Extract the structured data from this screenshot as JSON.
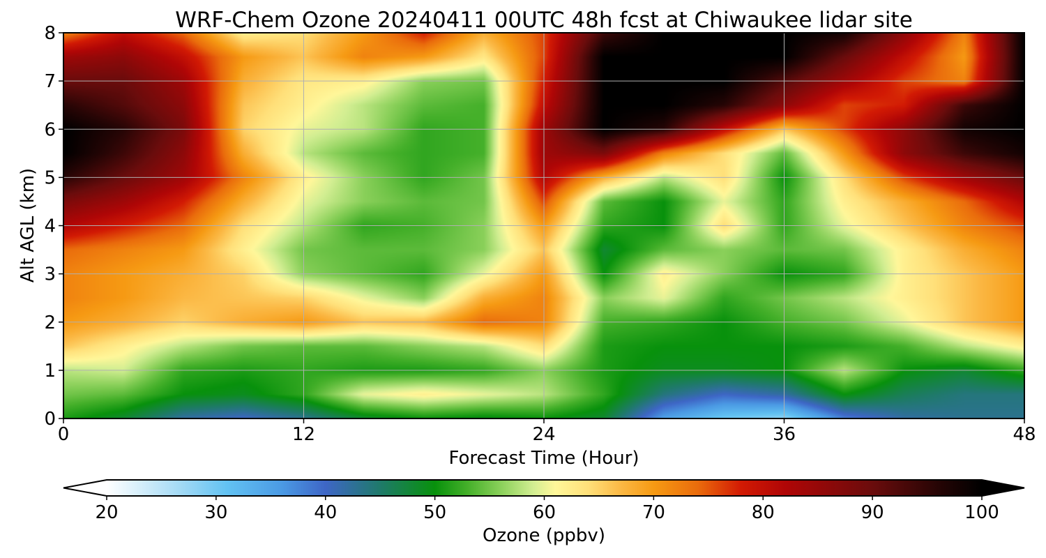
{
  "chart_data": {
    "type": "heatmap",
    "title": "WRF-Chem Ozone  20240411 00UTC 48h fcst at Chiwaukee lidar site",
    "xlabel": "Forecast Time (Hour)",
    "ylabel": "Alt AGL (km)",
    "xlim": [
      0,
      48
    ],
    "ylim": [
      0,
      8
    ],
    "x_ticks": [
      "0",
      "12",
      "24",
      "36",
      "48"
    ],
    "y_ticks": [
      "0",
      "1",
      "2",
      "3",
      "4",
      "5",
      "6",
      "7",
      "8"
    ],
    "grid": true,
    "x": [
      0,
      3,
      6,
      9,
      12,
      15,
      18,
      21,
      24,
      27,
      30,
      33,
      36,
      39,
      42,
      45,
      48
    ],
    "y": [
      0,
      0.5,
      1,
      1.5,
      2,
      2.5,
      3,
      3.5,
      4,
      4.5,
      5,
      5.5,
      6,
      6.5,
      7,
      7.5,
      8
    ],
    "z_ppbv": [
      [
        51,
        48,
        42,
        40,
        43,
        48,
        50,
        49,
        50,
        48,
        35,
        30,
        28,
        38,
        42,
        43,
        43
      ],
      [
        55,
        54,
        50,
        49,
        52,
        60,
        62,
        60,
        58,
        52,
        44,
        40,
        42,
        50,
        46,
        44,
        44
      ],
      [
        58,
        59,
        52,
        51,
        52,
        51,
        51,
        52,
        56,
        51,
        49,
        49,
        50,
        58,
        50,
        48,
        52
      ],
      [
        66,
        62,
        58,
        55,
        54,
        54,
        56,
        58,
        64,
        51,
        50,
        50,
        50,
        51,
        53,
        58,
        62
      ],
      [
        70,
        68,
        65,
        68,
        70,
        66,
        67,
        74,
        72,
        53,
        52,
        50,
        53,
        55,
        60,
        66,
        70
      ],
      [
        72,
        70,
        67,
        66,
        65,
        60,
        56,
        68,
        72,
        56,
        60,
        52,
        55,
        58,
        62,
        66,
        70
      ],
      [
        72,
        70,
        68,
        65,
        56,
        54,
        52,
        60,
        70,
        50,
        62,
        56,
        50,
        52,
        62,
        66,
        70
      ],
      [
        74,
        72,
        70,
        62,
        55,
        54,
        54,
        56,
        66,
        48,
        54,
        56,
        54,
        55,
        62,
        68,
        72
      ],
      [
        82,
        78,
        74,
        64,
        58,
        52,
        53,
        56,
        70,
        52,
        50,
        64,
        52,
        60,
        66,
        72,
        76
      ],
      [
        88,
        84,
        78,
        68,
        60,
        56,
        54,
        55,
        76,
        54,
        50,
        60,
        52,
        62,
        68,
        74,
        82
      ],
      [
        96,
        90,
        84,
        72,
        62,
        56,
        52,
        55,
        82,
        68,
        58,
        64,
        50,
        64,
        76,
        84,
        90
      ],
      [
        100,
        94,
        86,
        68,
        58,
        54,
        52,
        53,
        84,
        88,
        72,
        64,
        54,
        70,
        86,
        94,
        98
      ],
      [
        100,
        96,
        88,
        65,
        60,
        58,
        52,
        53,
        84,
        100,
        96,
        80,
        66,
        76,
        86,
        98,
        100
      ],
      [
        96,
        92,
        86,
        66,
        62,
        58,
        54,
        53,
        80,
        100,
        100,
        96,
        86,
        76,
        78,
        94,
        100
      ],
      [
        90,
        90,
        84,
        68,
        63,
        62,
        56,
        55,
        78,
        100,
        100,
        100,
        92,
        84,
        76,
        72,
        100
      ],
      [
        84,
        86,
        80,
        70,
        66,
        72,
        70,
        63,
        76,
        100,
        100,
        100,
        100,
        90,
        80,
        70,
        100
      ],
      [
        72,
        80,
        74,
        62,
        64,
        70,
        78,
        68,
        76,
        94,
        100,
        100,
        100,
        98,
        86,
        72,
        100
      ]
    ],
    "colorbar": {
      "label": "Ozone  (ppbv)",
      "min": 20,
      "max": 100,
      "ticks": [
        "20",
        "30",
        "40",
        "50",
        "60",
        "70",
        "80",
        "90",
        "100"
      ],
      "extend": "both",
      "colormap": [
        [
          20,
          "#ffffff"
        ],
        [
          27,
          "#9fd8f4"
        ],
        [
          31,
          "#62c2f2"
        ],
        [
          36,
          "#4b9ae4"
        ],
        [
          40,
          "#3e66c6"
        ],
        [
          45,
          "#1f7a6a"
        ],
        [
          50,
          "#08910c"
        ],
        [
          53,
          "#45b02a"
        ],
        [
          56,
          "#8ad05a"
        ],
        [
          59,
          "#d2ee92"
        ],
        [
          61,
          "#fff79a"
        ],
        [
          64,
          "#ffe07a"
        ],
        [
          67,
          "#fbb844"
        ],
        [
          70,
          "#f69a13"
        ],
        [
          74,
          "#ea6c0c"
        ],
        [
          78,
          "#d21a04"
        ],
        [
          82,
          "#b00606"
        ],
        [
          90,
          "#6a0c0c"
        ],
        [
          96,
          "#260505"
        ],
        [
          100,
          "#000000"
        ]
      ]
    }
  }
}
